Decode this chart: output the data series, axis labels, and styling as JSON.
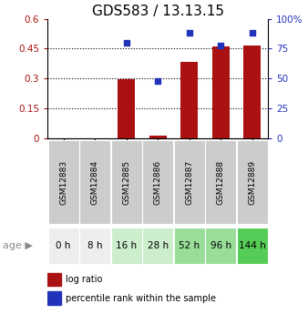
{
  "title": "GDS583 / 13.13.15",
  "samples": [
    "GSM12883",
    "GSM12884",
    "GSM12885",
    "GSM12886",
    "GSM12887",
    "GSM12888",
    "GSM12889"
  ],
  "ages": [
    "0 h",
    "8 h",
    "16 h",
    "28 h",
    "52 h",
    "96 h",
    "144 h"
  ],
  "log_ratio": [
    0.0,
    0.0,
    0.295,
    0.012,
    0.385,
    0.46,
    0.465
  ],
  "percentile_rank": [
    null,
    null,
    80,
    48,
    88,
    78,
    88
  ],
  "ylim_left": [
    0,
    0.6
  ],
  "ylim_right": [
    0,
    100
  ],
  "yticks_left": [
    0,
    0.15,
    0.3,
    0.45,
    0.6
  ],
  "ytick_labels_left": [
    "0",
    "0.15",
    "0.3",
    "0.45",
    "0.6"
  ],
  "yticks_right": [
    0,
    25,
    50,
    75,
    100
  ],
  "ytick_labels_right": [
    "0",
    "25",
    "50",
    "75",
    "100%"
  ],
  "bar_color": "#aa1111",
  "scatter_color": "#2233bb",
  "bar_width": 0.55,
  "age_colors": [
    "#eeeeee",
    "#eeeeee",
    "#cceecc",
    "#cceecc",
    "#99dd99",
    "#99dd99",
    "#55cc55"
  ],
  "sample_bg_color": "#cccccc",
  "title_fontsize": 11,
  "tick_fontsize": 7.5,
  "sample_fontsize": 6.5,
  "age_fontsize": 7.5
}
